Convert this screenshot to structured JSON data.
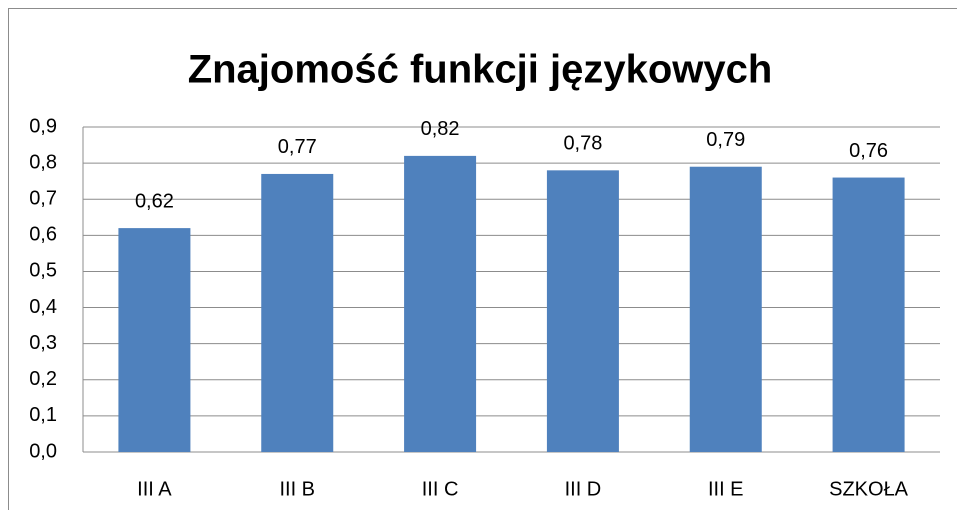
{
  "chart_data": {
    "type": "bar",
    "title": "Znajomość funkcji językowych",
    "categories": [
      "III A",
      "III B",
      "III C",
      "III D",
      "III E",
      "SZKOŁA"
    ],
    "values": [
      0.62,
      0.77,
      0.82,
      0.78,
      0.79,
      0.76
    ],
    "value_labels": [
      "0,62",
      "0,77",
      "0,82",
      "0,78",
      "0,79",
      "0,76"
    ],
    "color": "#4f81bd",
    "ylim": [
      0,
      0.9
    ],
    "yticks": [
      {
        "value": 0,
        "label": "0,0"
      },
      {
        "value": 0.1,
        "label": "0,1"
      },
      {
        "value": 0.2,
        "label": "0,2"
      },
      {
        "value": 0.3,
        "label": "0,3"
      },
      {
        "value": 0.4,
        "label": "0,4"
      },
      {
        "value": 0.5,
        "label": "0,5"
      },
      {
        "value": 0.6,
        "label": "0,6"
      },
      {
        "value": 0.7,
        "label": "0,7"
      },
      {
        "value": 0.8,
        "label": "0,8"
      },
      {
        "value": 0.9,
        "label": "0,9"
      }
    ],
    "grid": true
  }
}
